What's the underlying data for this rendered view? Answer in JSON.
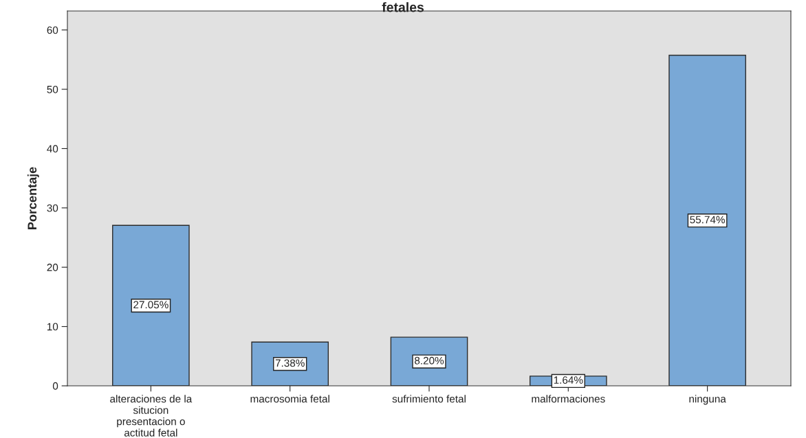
{
  "chart_data": {
    "type": "bar",
    "title": "fetales",
    "ylabel": "Porcentaje",
    "categories": [
      "alteraciones de la\nsitucion\npresentacion o\nactitud fetal",
      "macrosomia fetal",
      "sufrimiento fetal",
      "malformaciones",
      "ninguna"
    ],
    "values": [
      27.05,
      7.38,
      8.2,
      1.64,
      55.74
    ],
    "value_labels": [
      "27.05%",
      "7.38%",
      "8.20%",
      "1.64%",
      "55.74%"
    ],
    "color": "#79a8d6",
    "ylim": [
      0,
      63.2
    ],
    "yticks": [
      0,
      10,
      20,
      30,
      40,
      50,
      60
    ],
    "grid": false
  }
}
